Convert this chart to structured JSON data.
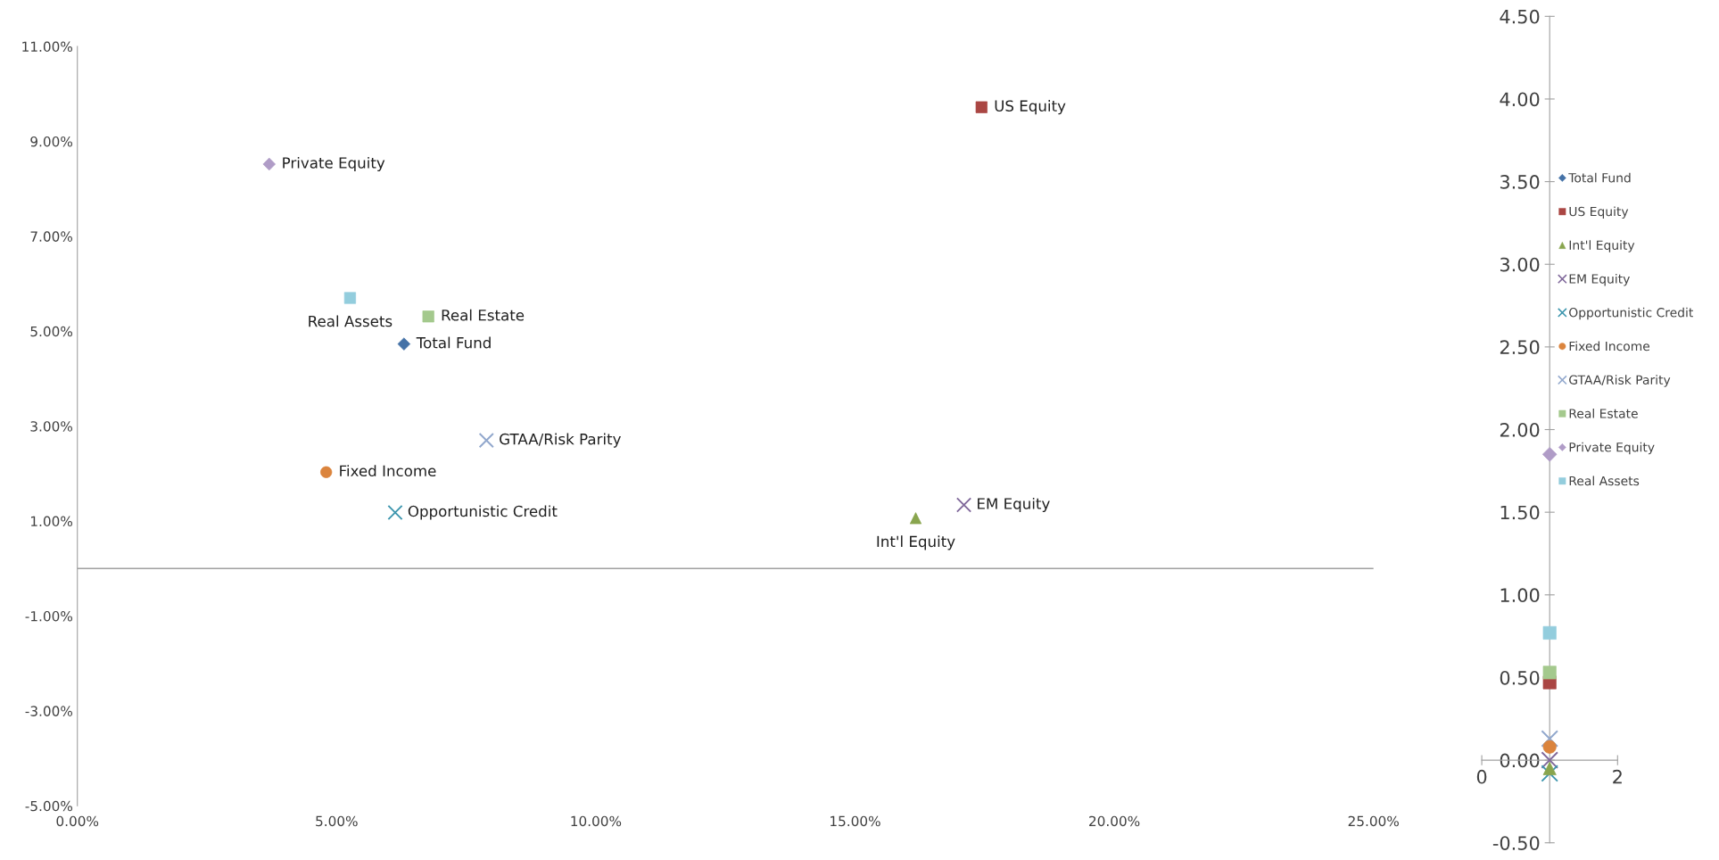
{
  "chart_data": [
    {
      "type": "scatter",
      "legend": false,
      "grid": false,
      "xlim": [
        0,
        25
      ],
      "xticks": [
        {
          "value": 0,
          "label": "0.00%"
        },
        {
          "value": 5,
          "label": "5.00%"
        },
        {
          "value": 10,
          "label": "10.00%"
        },
        {
          "value": 15,
          "label": "15.00%"
        },
        {
          "value": 20,
          "label": "20.00%"
        },
        {
          "value": 25,
          "label": "25.00%"
        }
      ],
      "ylim": [
        -5,
        11
      ],
      "yticks": [
        {
          "value": -5,
          "label": "-5.00%"
        },
        {
          "value": -3,
          "label": "-3.00%"
        },
        {
          "value": -1,
          "label": "-1.00%"
        },
        {
          "value": 1,
          "label": "1.00%"
        },
        {
          "value": 3,
          "label": "3.00%"
        },
        {
          "value": 5,
          "label": "5.00%"
        },
        {
          "value": 7,
          "label": "7.00%"
        },
        {
          "value": 9,
          "label": "9.00%"
        },
        {
          "value": 11,
          "label": "11.00%"
        }
      ],
      "ref_lines": [
        {
          "axis": "y",
          "value": 0,
          "color": "#a0a0a0"
        }
      ],
      "series": [
        {
          "name": "Total Fund",
          "color": "#4572a7",
          "marker": "diamond",
          "x": [
            6.3
          ],
          "values": [
            4.73
          ]
        },
        {
          "name": "US Equity",
          "color": "#aa4643",
          "marker": "square",
          "x": [
            17.44
          ],
          "values": [
            9.72
          ]
        },
        {
          "name": "Int'l Equity",
          "color": "#89a54e",
          "marker": "triangle",
          "x": [
            16.17
          ],
          "values": [
            1.06
          ]
        },
        {
          "name": "EM Equity",
          "color": "#80699b",
          "marker": "cross",
          "x": [
            17.1
          ],
          "values": [
            1.34
          ]
        },
        {
          "name": "Opportunistic Credit",
          "color": "#3d96ae",
          "marker": "cross",
          "x": [
            6.13
          ],
          "values": [
            1.18
          ]
        },
        {
          "name": "Fixed Income",
          "color": "#db843d",
          "marker": "circle",
          "x": [
            4.8
          ],
          "values": [
            2.03
          ]
        },
        {
          "name": "GTAA/Risk Parity",
          "color": "#92a8cd",
          "marker": "cross",
          "x": [
            7.89
          ],
          "values": [
            2.7
          ]
        },
        {
          "name": "Real Estate",
          "color": "#a4c98d",
          "marker": "square",
          "x": [
            6.77
          ],
          "values": [
            5.31
          ]
        },
        {
          "name": "Private Equity",
          "color": "#b09cc7",
          "marker": "diamond",
          "x": [
            3.7
          ],
          "values": [
            8.52
          ]
        },
        {
          "name": "Real Assets",
          "color": "#93cddd",
          "marker": "square",
          "x": [
            5.26
          ],
          "values": [
            5.7
          ]
        }
      ]
    },
    {
      "type": "scatter",
      "legend": "right",
      "grid": false,
      "xlim": [
        0,
        2
      ],
      "xticks": [
        0,
        2
      ],
      "ylim": [
        -0.5,
        4.5
      ],
      "yticks": [
        {
          "value": -0.5,
          "label": "-0.50"
        },
        {
          "value": 0,
          "label": "0.00"
        },
        {
          "value": 0.5,
          "label": "0.50"
        },
        {
          "value": 1,
          "label": "1.00"
        },
        {
          "value": 1.5,
          "label": "1.50"
        },
        {
          "value": 2,
          "label": "2.00"
        },
        {
          "value": 2.5,
          "label": "2.50"
        },
        {
          "value": 3,
          "label": "3.00"
        },
        {
          "value": 3.5,
          "label": "3.50"
        },
        {
          "value": 4,
          "label": "4.00"
        },
        {
          "value": 4.5,
          "label": "4.50"
        }
      ],
      "series": [
        {
          "name": "Total Fund",
          "color": "#4572a7",
          "marker": "diamond",
          "x": [
            null
          ],
          "values": [
            null
          ]
        },
        {
          "name": "US Equity",
          "color": "#aa4643",
          "marker": "square",
          "x": [
            1
          ],
          "values": [
            0.47
          ]
        },
        {
          "name": "Int'l Equity",
          "color": "#89a54e",
          "marker": "triangle",
          "x": [
            1
          ],
          "values": [
            -0.05
          ]
        },
        {
          "name": "EM Equity",
          "color": "#80699b",
          "marker": "cross",
          "x": [
            1
          ],
          "values": [
            0.0
          ]
        },
        {
          "name": "Opportunistic Credit",
          "color": "#3d96ae",
          "marker": "cross",
          "x": [
            1
          ],
          "values": [
            -0.08
          ]
        },
        {
          "name": "Fixed Income",
          "color": "#db843d",
          "marker": "circle",
          "x": [
            1
          ],
          "values": [
            0.08
          ]
        },
        {
          "name": "GTAA/Risk Parity",
          "color": "#92a8cd",
          "marker": "cross",
          "x": [
            1
          ],
          "values": [
            0.13
          ]
        },
        {
          "name": "Real Estate",
          "color": "#a4c98d",
          "marker": "square",
          "x": [
            1
          ],
          "values": [
            0.53
          ]
        },
        {
          "name": "Private Equity",
          "color": "#b09cc7",
          "marker": "diamond",
          "x": [
            1
          ],
          "values": [
            1.85
          ]
        },
        {
          "name": "Real Assets",
          "color": "#93cddd",
          "marker": "square",
          "x": [
            1
          ],
          "values": [
            0.77
          ]
        }
      ]
    }
  ]
}
